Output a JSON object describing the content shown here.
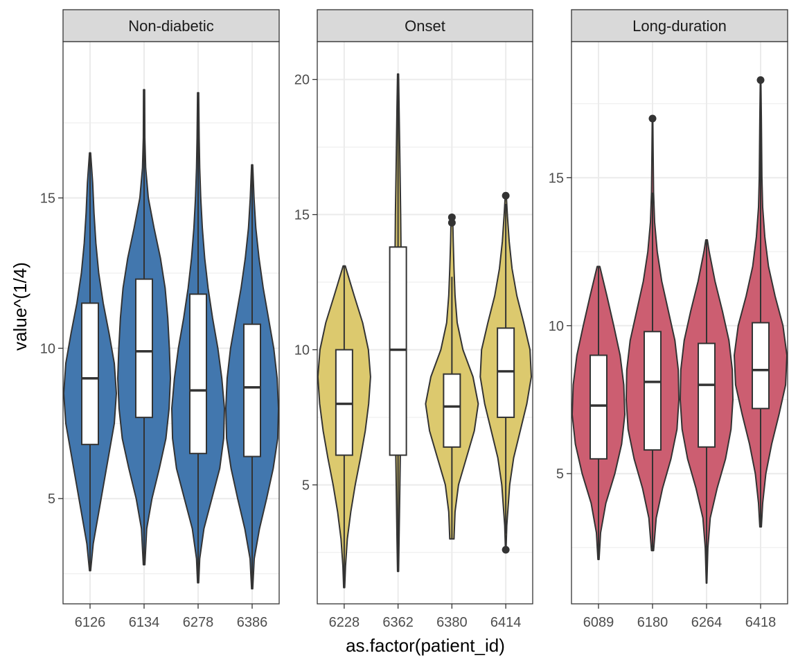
{
  "chart_data": {
    "type": "violin",
    "xlabel": "as.factor(patient_id)",
    "ylabel": "value^(1/4)",
    "grid": true,
    "facets": [
      {
        "title": "Non-diabetic",
        "color": "#4277AE",
        "ylim": [
          1.5,
          20.2
        ],
        "yticks": [
          5,
          10,
          15
        ],
        "groups": [
          {
            "category": "6126",
            "min": 2.6,
            "q1": 6.8,
            "median": 9.0,
            "q3": 11.5,
            "max": 16.5,
            "outliers": [],
            "density": [
              [
                2.6,
                0.02
              ],
              [
                3.5,
                0.12
              ],
              [
                4.5,
                0.32
              ],
              [
                5.5,
                0.52
              ],
              [
                6.5,
                0.72
              ],
              [
                7.5,
                0.92
              ],
              [
                8.5,
                1.0
              ],
              [
                9.5,
                0.92
              ],
              [
                10.5,
                0.72
              ],
              [
                11.5,
                0.5
              ],
              [
                12.5,
                0.33
              ],
              [
                13.5,
                0.22
              ],
              [
                14.5,
                0.15
              ],
              [
                15.5,
                0.1
              ],
              [
                16.5,
                0.02
              ]
            ]
          },
          {
            "category": "6134",
            "min": 2.8,
            "q1": 7.7,
            "median": 9.9,
            "q3": 12.3,
            "max": 18.6,
            "outliers": [],
            "density": [
              [
                2.8,
                0.03
              ],
              [
                4.0,
                0.1
              ],
              [
                5.0,
                0.3
              ],
              [
                6.0,
                0.58
              ],
              [
                7.0,
                0.83
              ],
              [
                8.0,
                0.95
              ],
              [
                9.0,
                1.0
              ],
              [
                10.0,
                0.96
              ],
              [
                11.0,
                0.9
              ],
              [
                12.0,
                0.8
              ],
              [
                13.0,
                0.62
              ],
              [
                14.0,
                0.38
              ],
              [
                15.0,
                0.16
              ],
              [
                16.0,
                0.06
              ],
              [
                17.0,
                0.03
              ],
              [
                18.6,
                0.02
              ]
            ]
          },
          {
            "category": "6278",
            "min": 2.2,
            "q1": 6.5,
            "median": 8.6,
            "q3": 11.8,
            "max": 18.5,
            "outliers": [],
            "density": [
              [
                2.2,
                0.02
              ],
              [
                3.0,
                0.06
              ],
              [
                4.0,
                0.22
              ],
              [
                5.0,
                0.52
              ],
              [
                6.0,
                0.82
              ],
              [
                7.0,
                0.97
              ],
              [
                8.0,
                1.0
              ],
              [
                9.0,
                0.9
              ],
              [
                10.0,
                0.75
              ],
              [
                11.0,
                0.55
              ],
              [
                12.0,
                0.38
              ],
              [
                13.0,
                0.25
              ],
              [
                14.0,
                0.16
              ],
              [
                15.0,
                0.1
              ],
              [
                16.0,
                0.06
              ],
              [
                17.0,
                0.04
              ],
              [
                18.5,
                0.02
              ]
            ]
          },
          {
            "category": "6386",
            "min": 2.0,
            "q1": 6.4,
            "median": 8.7,
            "q3": 10.8,
            "max": 16.1,
            "outliers": [],
            "density": [
              [
                2.0,
                0.02
              ],
              [
                3.0,
                0.08
              ],
              [
                4.0,
                0.28
              ],
              [
                5.0,
                0.55
              ],
              [
                6.0,
                0.8
              ],
              [
                7.0,
                0.97
              ],
              [
                8.0,
                1.0
              ],
              [
                9.0,
                0.95
              ],
              [
                10.0,
                0.82
              ],
              [
                11.0,
                0.62
              ],
              [
                12.0,
                0.42
              ],
              [
                13.0,
                0.26
              ],
              [
                14.0,
                0.14
              ],
              [
                15.0,
                0.07
              ],
              [
                16.1,
                0.02
              ]
            ]
          }
        ]
      },
      {
        "title": "Onset",
        "color": "#DCC96E",
        "ylim": [
          0.6,
          21.4
        ],
        "yticks": [
          5,
          10,
          15,
          20
        ],
        "groups": [
          {
            "category": "6228",
            "min": 1.2,
            "q1": 6.1,
            "median": 8.0,
            "q3": 10.0,
            "max": 13.1,
            "outliers": [],
            "density": [
              [
                1.2,
                0.02
              ],
              [
                2.0,
                0.05
              ],
              [
                3.0,
                0.12
              ],
              [
                4.0,
                0.25
              ],
              [
                5.0,
                0.42
              ],
              [
                6.0,
                0.62
              ],
              [
                7.0,
                0.8
              ],
              [
                8.0,
                0.93
              ],
              [
                9.0,
                1.0
              ],
              [
                10.0,
                0.92
              ],
              [
                11.0,
                0.7
              ],
              [
                12.0,
                0.38
              ],
              [
                13.1,
                0.04
              ]
            ]
          },
          {
            "category": "6362",
            "min": 1.8,
            "q1": 6.1,
            "median": 10.0,
            "q3": 13.8,
            "max": 20.2,
            "outliers": [],
            "density": [
              [
                1.8,
                0.02
              ],
              [
                3.0,
                0.04
              ],
              [
                5.0,
                0.07
              ],
              [
                7.0,
                0.1
              ],
              [
                9.0,
                0.12
              ],
              [
                11.0,
                0.13
              ],
              [
                13.0,
                0.12
              ],
              [
                15.0,
                0.1
              ],
              [
                17.0,
                0.07
              ],
              [
                19.0,
                0.04
              ],
              [
                20.2,
                0.02
              ]
            ]
          },
          {
            "category": "6380",
            "min": 3.0,
            "q1": 6.4,
            "median": 7.9,
            "q3": 9.1,
            "max": 12.7,
            "outliers": [
              14.7,
              14.9
            ],
            "density": [
              [
                3.0,
                0.08
              ],
              [
                4.0,
                0.12
              ],
              [
                5.0,
                0.25
              ],
              [
                6.0,
                0.55
              ],
              [
                7.0,
                0.85
              ],
              [
                8.0,
                1.0
              ],
              [
                9.0,
                0.8
              ],
              [
                10.0,
                0.42
              ],
              [
                11.0,
                0.2
              ],
              [
                12.0,
                0.12
              ],
              [
                13.0,
                0.08
              ],
              [
                14.0,
                0.05
              ],
              [
                14.9,
                0.03
              ]
            ]
          },
          {
            "category": "6414",
            "min": 3.2,
            "q1": 7.5,
            "median": 9.2,
            "q3": 10.8,
            "max": 15.4,
            "outliers": [
              2.6,
              15.7
            ],
            "density": [
              [
                2.6,
                0.01
              ],
              [
                3.5,
                0.04
              ],
              [
                5.0,
                0.15
              ],
              [
                6.0,
                0.3
              ],
              [
                7.0,
                0.55
              ],
              [
                8.0,
                0.8
              ],
              [
                9.0,
                0.97
              ],
              [
                10.0,
                0.92
              ],
              [
                11.0,
                0.68
              ],
              [
                12.0,
                0.42
              ],
              [
                13.0,
                0.24
              ],
              [
                14.0,
                0.13
              ],
              [
                15.0,
                0.06
              ],
              [
                15.7,
                0.02
              ]
            ]
          }
        ]
      },
      {
        "title": "Long-duration",
        "color": "#CC5E71",
        "ylim": [
          0.6,
          19.6
        ],
        "yticks": [
          5,
          10,
          15
        ],
        "groups": [
          {
            "category": "6089",
            "min": 2.1,
            "q1": 5.5,
            "median": 7.3,
            "q3": 9.0,
            "max": 12.0,
            "outliers": [],
            "density": [
              [
                2.1,
                0.02
              ],
              [
                3.0,
                0.08
              ],
              [
                4.0,
                0.28
              ],
              [
                5.0,
                0.62
              ],
              [
                6.0,
                0.88
              ],
              [
                7.0,
                1.0
              ],
              [
                8.0,
                0.96
              ],
              [
                9.0,
                0.82
              ],
              [
                10.0,
                0.58
              ],
              [
                11.0,
                0.32
              ],
              [
                12.0,
                0.05
              ]
            ]
          },
          {
            "category": "6180",
            "min": 2.4,
            "q1": 5.8,
            "median": 8.1,
            "q3": 9.8,
            "max": 14.5,
            "outliers": [
              17.0
            ],
            "density": [
              [
                2.4,
                0.04
              ],
              [
                3.5,
                0.14
              ],
              [
                4.5,
                0.38
              ],
              [
                5.5,
                0.7
              ],
              [
                6.5,
                0.93
              ],
              [
                7.5,
                1.0
              ],
              [
                8.5,
                0.98
              ],
              [
                9.5,
                0.85
              ],
              [
                10.5,
                0.6
              ],
              [
                11.5,
                0.35
              ],
              [
                12.5,
                0.18
              ],
              [
                13.5,
                0.08
              ],
              [
                14.5,
                0.04
              ],
              [
                16.0,
                0.02
              ],
              [
                17.0,
                0.01
              ]
            ]
          },
          {
            "category": "6264",
            "min": 1.3,
            "q1": 5.9,
            "median": 8.0,
            "q3": 9.4,
            "max": 12.9,
            "outliers": [],
            "density": [
              [
                1.3,
                0.01
              ],
              [
                2.5,
                0.05
              ],
              [
                3.5,
                0.14
              ],
              [
                4.5,
                0.4
              ],
              [
                5.5,
                0.72
              ],
              [
                6.5,
                0.93
              ],
              [
                7.5,
                1.0
              ],
              [
                8.5,
                0.98
              ],
              [
                9.5,
                0.85
              ],
              [
                10.5,
                0.6
              ],
              [
                11.5,
                0.32
              ],
              [
                12.5,
                0.1
              ],
              [
                12.9,
                0.03
              ]
            ]
          },
          {
            "category": "6418",
            "min": 3.2,
            "q1": 7.2,
            "median": 8.5,
            "q3": 10.1,
            "max": 17.5,
            "outliers": [
              18.3
            ],
            "density": [
              [
                3.2,
                0.03
              ],
              [
                4.0,
                0.08
              ],
              [
                5.0,
                0.2
              ],
              [
                6.0,
                0.42
              ],
              [
                7.0,
                0.7
              ],
              [
                8.0,
                0.95
              ],
              [
                9.0,
                1.0
              ],
              [
                10.0,
                0.85
              ],
              [
                11.0,
                0.55
              ],
              [
                12.0,
                0.3
              ],
              [
                13.0,
                0.16
              ],
              [
                14.0,
                0.08
              ],
              [
                15.0,
                0.05
              ],
              [
                17.0,
                0.03
              ],
              [
                18.3,
                0.01
              ]
            ]
          }
        ]
      }
    ]
  }
}
